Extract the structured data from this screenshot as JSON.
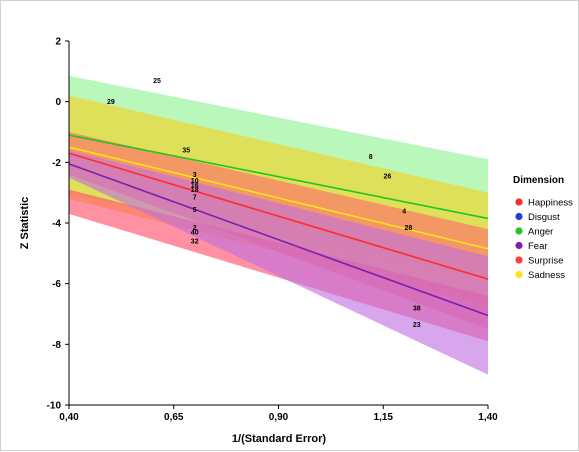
{
  "chart_data": {
    "type": "scatter",
    "title": "",
    "xlabel": "1/(Standard Error)",
    "ylabel": "Z Statistic",
    "xlim": [
      0.4,
      1.4
    ],
    "ylim": [
      -10,
      2
    ],
    "xticks": [
      "0,40",
      "0,65",
      "0,90",
      "1,15",
      "1,40"
    ],
    "xtick_values": [
      0.4,
      0.65,
      0.9,
      1.15,
      1.4
    ],
    "yticks": [
      "2",
      "0",
      "-2",
      "-4",
      "-6",
      "-8",
      "-10"
    ],
    "ytick_values": [
      2,
      0,
      -2,
      -4,
      -6,
      -8,
      -10
    ],
    "grid": false,
    "legend_position": "right",
    "legend_title": "Dimension",
    "series": [
      {
        "name": "Happiness",
        "color": "#ff2b2b",
        "band_color": "#ff6b6b",
        "line": [
          [
            0.4,
            -1.7
          ],
          [
            1.4,
            -5.85
          ]
        ],
        "band_upper": [
          [
            0.4,
            -1.0
          ],
          [
            1.4,
            -4.2
          ]
        ],
        "band_lower": [
          [
            0.4,
            -2.4
          ],
          [
            1.4,
            -7.5
          ]
        ]
      },
      {
        "name": "Disgust",
        "color": "#1f3fd8",
        "band_color": "#6f86f0",
        "line": null,
        "band_upper": null,
        "band_lower": null
      },
      {
        "name": "Anger",
        "color": "#22c422",
        "band_color": "#8ff28f",
        "line": [
          [
            0.4,
            -1.1
          ],
          [
            1.4,
            -3.85
          ]
        ],
        "band_upper": [
          [
            0.4,
            0.85
          ],
          [
            1.4,
            -1.9
          ]
        ],
        "band_lower": [
          [
            0.4,
            -3.05
          ],
          [
            1.4,
            -5.8
          ]
        ]
      },
      {
        "name": "Fear",
        "color": "#7a1fb0",
        "band_color": "#c06fe0",
        "line": [
          [
            0.4,
            -2.05
          ],
          [
            1.4,
            -7.05
          ]
        ],
        "band_upper": [
          [
            0.4,
            -1.6
          ],
          [
            1.4,
            -5.1
          ]
        ],
        "band_lower": [
          [
            0.4,
            -2.5
          ],
          [
            1.4,
            -9.0
          ]
        ]
      },
      {
        "name": "Surprise",
        "color": "#ff3b3b",
        "band_color": "#ff4d6a",
        "line": null,
        "band_upper": [
          [
            0.4,
            -2.9
          ],
          [
            1.4,
            -6.4
          ]
        ],
        "band_lower": [
          [
            0.4,
            -3.7
          ],
          [
            1.4,
            -7.9
          ]
        ]
      },
      {
        "name": "Sadness",
        "color": "#ffe21a",
        "band_color": "#f5d21e",
        "line": [
          [
            0.4,
            -1.5
          ],
          [
            1.4,
            -4.85
          ]
        ],
        "band_upper": [
          [
            0.4,
            0.2
          ],
          [
            1.4,
            -3.0
          ]
        ],
        "band_lower": [
          [
            0.4,
            -3.2
          ],
          [
            1.4,
            -6.7
          ]
        ]
      }
    ],
    "points": [
      {
        "label": "25",
        "x": 0.61,
        "y": 0.7
      },
      {
        "label": "29",
        "x": 0.5,
        "y": 0.0
      },
      {
        "label": "35",
        "x": 0.68,
        "y": -1.6
      },
      {
        "label": "8",
        "x": 1.12,
        "y": -1.8
      },
      {
        "label": "3",
        "x": 0.7,
        "y": -2.4
      },
      {
        "label": "10",
        "x": 0.7,
        "y": -2.6
      },
      {
        "label": "16",
        "x": 0.7,
        "y": -2.75
      },
      {
        "label": "26",
        "x": 1.16,
        "y": -2.45
      },
      {
        "label": "18",
        "x": 0.7,
        "y": -2.9
      },
      {
        "label": "7",
        "x": 0.7,
        "y": -3.15
      },
      {
        "label": "5",
        "x": 0.7,
        "y": -3.55
      },
      {
        "label": "4",
        "x": 1.2,
        "y": -3.6
      },
      {
        "label": "28",
        "x": 1.21,
        "y": -4.15
      },
      {
        "label": "2",
        "x": 0.7,
        "y": -4.15
      },
      {
        "label": "40",
        "x": 0.7,
        "y": -4.3
      },
      {
        "label": "32",
        "x": 0.7,
        "y": -4.6
      },
      {
        "label": "38",
        "x": 1.23,
        "y": -6.8
      },
      {
        "label": "23",
        "x": 1.23,
        "y": -7.35
      }
    ]
  }
}
